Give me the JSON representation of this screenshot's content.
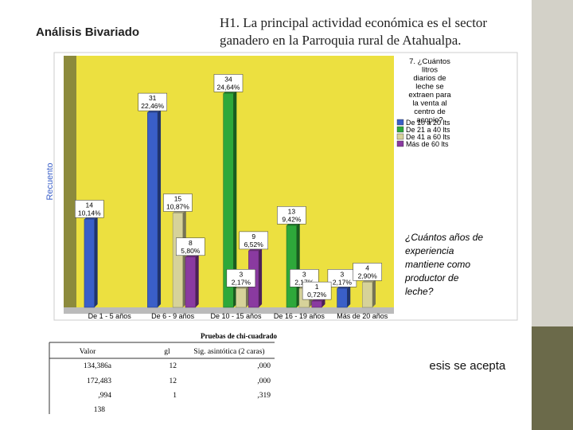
{
  "header": {
    "title": "Análisis Bivariado",
    "hypothesis": "H1. La principal actividad económica es el sector ganadero en la Parroquia rural de Atahualpa."
  },
  "chart_data": {
    "type": "bar",
    "ylabel": "Recuento",
    "xlabel": "¿Cuántos años de experiencia mantiene como productor de leche?",
    "legend_title": "7. ¿Cuántos litros diarios de leche se extraen para la venta al centro de acopio?",
    "categories": [
      "De 1 - 5 años",
      "De 6 - 9 años",
      "De 10 - 15 años",
      "De 16 - 19 años",
      "Más de 20 años"
    ],
    "ylim": [
      0,
      40
    ],
    "legend": "top-right",
    "series": [
      {
        "name": "De 10 a 20 lts",
        "color": "#3a5fc8",
        "values": [
          14,
          31,
          null,
          null,
          3
        ],
        "value_labels": [
          "14 10,14%",
          "31 22,46%",
          null,
          null,
          "3 2,17%"
        ]
      },
      {
        "name": "De 21 a 40 lts",
        "color": "#2ea83a",
        "values": [
          null,
          null,
          34,
          13,
          null
        ],
        "value_labels": [
          null,
          null,
          "34 24,64%",
          "13 9,42%",
          null
        ]
      },
      {
        "name": "De 41 a 60 lts",
        "color": "#d6d29a",
        "values": [
          null,
          15,
          3,
          3,
          4
        ],
        "value_labels": [
          null,
          "15 10,87%",
          "3 2,17%",
          "3 2,17%",
          "4 2,90%"
        ]
      },
      {
        "name": "Más de 60 lts",
        "color": "#8a3aa0",
        "values": [
          null,
          8,
          9,
          1,
          null
        ],
        "value_labels": [
          null,
          "8 5,80%",
          "9 6,52%",
          "1 0,72%",
          null
        ]
      }
    ]
  },
  "table": {
    "title": "Pruebas de chi-cuadrado",
    "headers": [
      "Valor",
      "gl",
      "Sig. asintótica (2 caras)"
    ],
    "rows": [
      [
        "134,386a",
        "12",
        ",000"
      ],
      [
        "172,483",
        "12",
        ",000"
      ],
      [
        ",994",
        "1",
        ",319"
      ],
      [
        "138"
      ]
    ]
  },
  "conclusion": "La hipótesis se acepta"
}
